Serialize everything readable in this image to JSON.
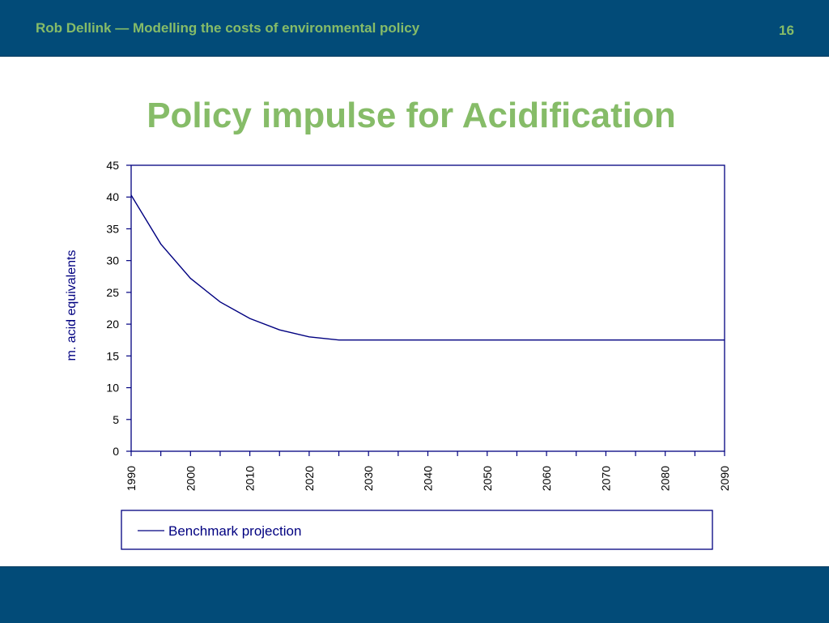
{
  "header": {
    "title": "Rob Dellink — Modelling the costs of environmental policy",
    "slide_number": "16"
  },
  "slide": {
    "title": "Policy impulse for Acidification"
  },
  "colors": {
    "header_bg": "#024b78",
    "accent_green": "#86bc68",
    "series_line": "#000080"
  },
  "chart_data": {
    "type": "line",
    "title": "",
    "xlabel": "",
    "ylabel": "m. acid equivalents",
    "xlim": [
      1990,
      2090
    ],
    "ylim": [
      0,
      45
    ],
    "y_ticks": [
      0,
      5,
      10,
      15,
      20,
      25,
      30,
      35,
      40,
      45
    ],
    "y_tick_labels": [
      "0",
      "5",
      "10",
      "15",
      "20",
      "25",
      "30",
      "35",
      "40",
      "45"
    ],
    "x_ticks": [
      1990,
      2000,
      2010,
      2020,
      2030,
      2040,
      2050,
      2060,
      2070,
      2080,
      2090
    ],
    "x_tick_labels": [
      "1990",
      "2000",
      "2010",
      "2020",
      "2030",
      "2040",
      "2050",
      "2060",
      "2070",
      "2080",
      "2090"
    ],
    "grid": false,
    "legend_position": "bottom",
    "series": [
      {
        "name": "Benchmark projection",
        "x": [
          1990,
          1995,
          2000,
          2005,
          2010,
          2015,
          2020,
          2025,
          2030,
          2035,
          2040,
          2045,
          2050,
          2055,
          2060,
          2065,
          2070,
          2075,
          2080,
          2085,
          2090
        ],
        "values": [
          40.3,
          32.6,
          27.2,
          23.5,
          20.9,
          19.1,
          18.0,
          17.5,
          17.5,
          17.5,
          17.5,
          17.5,
          17.5,
          17.5,
          17.5,
          17.5,
          17.5,
          17.5,
          17.5,
          17.5,
          17.5
        ]
      }
    ]
  }
}
